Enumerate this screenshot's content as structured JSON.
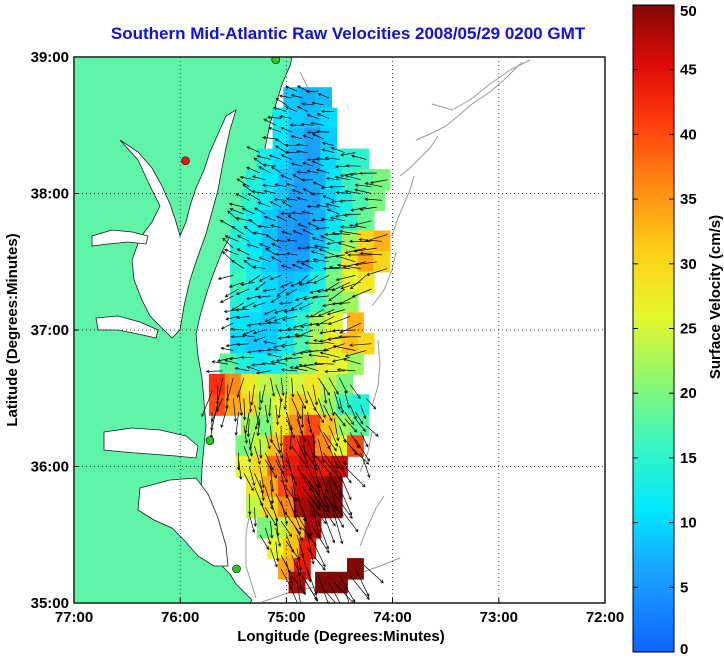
{
  "title": "Southern Mid-Atlantic Raw Velocities 2008/05/29 0200 GMT",
  "map": {
    "xlabel": "Longitude (Degrees:Minutes)",
    "ylabel": "Latitude (Degrees:Minutes)",
    "xlim": [
      -77,
      -72
    ],
    "ylim": [
      35,
      39
    ],
    "xticks": [
      {
        "value": -77,
        "label": "77:00"
      },
      {
        "value": -76,
        "label": "76:00"
      },
      {
        "value": -75,
        "label": "75:00"
      },
      {
        "value": -74,
        "label": "74:00"
      },
      {
        "value": -73,
        "label": "73:00"
      },
      {
        "value": -72,
        "label": "72:00"
      }
    ],
    "yticks": [
      {
        "value": 39,
        "label": "39:00"
      },
      {
        "value": 38,
        "label": "38:00"
      },
      {
        "value": 37,
        "label": "37:00"
      },
      {
        "value": 36,
        "label": "36:00"
      },
      {
        "value": 35,
        "label": "35:00"
      }
    ],
    "grid": "dotted",
    "land_color": "#5ef5a8",
    "bathymetry_color": "#9a9a9a"
  },
  "colorbar": {
    "label": "Surface Velocity (cm/s)",
    "min": 0,
    "max": 50,
    "ticks": [
      {
        "value": 0,
        "label": "0"
      },
      {
        "value": 5,
        "label": "5"
      },
      {
        "value": 10,
        "label": "10"
      },
      {
        "value": 15,
        "label": "15"
      },
      {
        "value": 20,
        "label": "20"
      },
      {
        "value": 25,
        "label": "25"
      },
      {
        "value": 30,
        "label": "30"
      },
      {
        "value": 35,
        "label": "35"
      },
      {
        "value": 40,
        "label": "40"
      },
      {
        "value": 45,
        "label": "45"
      },
      {
        "value": 50,
        "label": "50"
      }
    ]
  },
  "stations": [
    {
      "lon": -75.1,
      "lat": 38.98,
      "color": "#22cc22"
    },
    {
      "lon": -75.95,
      "lat": 38.24,
      "color": "#ee1111"
    },
    {
      "lon": -75.72,
      "lat": 36.19,
      "color": "#22cc22"
    },
    {
      "lon": -75.47,
      "lat": 35.25,
      "color": "#22cc22"
    }
  ],
  "chart_data": {
    "type": "heatmap",
    "description": "Gridded surface current field; cell values are speed in cm/s.",
    "value_units": "cm/s",
    "cells": [
      [
        -74.95,
        38.7,
        9
      ],
      [
        -74.8,
        38.7,
        7
      ],
      [
        -74.65,
        38.7,
        8
      ],
      [
        -75.05,
        38.55,
        12
      ],
      [
        -74.9,
        38.55,
        9
      ],
      [
        -74.75,
        38.55,
        8
      ],
      [
        -74.6,
        38.55,
        10
      ],
      [
        -75.05,
        38.4,
        11
      ],
      [
        -74.9,
        38.4,
        8
      ],
      [
        -74.75,
        38.4,
        6
      ],
      [
        -74.6,
        38.4,
        9
      ],
      [
        -75.2,
        38.25,
        13
      ],
      [
        -75.05,
        38.25,
        10
      ],
      [
        -74.9,
        38.25,
        7
      ],
      [
        -74.75,
        38.25,
        6
      ],
      [
        -74.6,
        38.25,
        10
      ],
      [
        -74.45,
        38.25,
        14
      ],
      [
        -74.3,
        38.25,
        15
      ],
      [
        -75.3,
        38.1,
        14
      ],
      [
        -75.15,
        38.1,
        11
      ],
      [
        -75.0,
        38.1,
        8
      ],
      [
        -74.85,
        38.1,
        6
      ],
      [
        -74.7,
        38.1,
        7
      ],
      [
        -74.55,
        38.1,
        11
      ],
      [
        -74.4,
        38.1,
        16
      ],
      [
        -74.25,
        38.1,
        18
      ],
      [
        -74.1,
        38.1,
        20
      ],
      [
        -75.35,
        37.95,
        15
      ],
      [
        -75.2,
        37.95,
        12
      ],
      [
        -75.05,
        37.95,
        9
      ],
      [
        -74.9,
        37.95,
        6
      ],
      [
        -74.75,
        37.95,
        6
      ],
      [
        -74.6,
        37.95,
        9
      ],
      [
        -74.45,
        37.95,
        13
      ],
      [
        -74.3,
        37.95,
        17
      ],
      [
        -74.15,
        37.95,
        20
      ],
      [
        -75.45,
        37.8,
        15
      ],
      [
        -75.3,
        37.8,
        12
      ],
      [
        -75.15,
        37.8,
        9
      ],
      [
        -75.0,
        37.8,
        6
      ],
      [
        -74.85,
        37.8,
        5
      ],
      [
        -74.7,
        37.8,
        7
      ],
      [
        -74.55,
        37.8,
        11
      ],
      [
        -74.4,
        37.8,
        15
      ],
      [
        -74.25,
        37.8,
        19
      ],
      [
        -75.45,
        37.65,
        14
      ],
      [
        -75.3,
        37.65,
        11
      ],
      [
        -75.15,
        37.65,
        8
      ],
      [
        -75.0,
        37.65,
        5
      ],
      [
        -74.85,
        37.65,
        4
      ],
      [
        -74.7,
        37.65,
        8
      ],
      [
        -74.55,
        37.65,
        14
      ],
      [
        -74.4,
        37.65,
        22
      ],
      [
        -74.25,
        37.65,
        30
      ],
      [
        -74.1,
        37.65,
        33
      ],
      [
        -75.45,
        37.5,
        15
      ],
      [
        -75.3,
        37.5,
        12
      ],
      [
        -75.15,
        37.5,
        9
      ],
      [
        -75.0,
        37.5,
        6
      ],
      [
        -74.85,
        37.5,
        6
      ],
      [
        -74.7,
        37.5,
        10
      ],
      [
        -74.55,
        37.5,
        18
      ],
      [
        -74.4,
        37.5,
        28
      ],
      [
        -74.25,
        37.5,
        34
      ],
      [
        -74.1,
        37.5,
        30
      ],
      [
        -75.45,
        37.35,
        16
      ],
      [
        -75.3,
        37.35,
        13
      ],
      [
        -75.15,
        37.35,
        10
      ],
      [
        -75.0,
        37.35,
        8
      ],
      [
        -74.85,
        37.35,
        9
      ],
      [
        -74.7,
        37.35,
        13
      ],
      [
        -74.55,
        37.35,
        20
      ],
      [
        -74.4,
        37.35,
        26
      ],
      [
        -74.25,
        37.35,
        28
      ],
      [
        -75.45,
        37.2,
        14
      ],
      [
        -75.3,
        37.2,
        12
      ],
      [
        -75.15,
        37.2,
        10
      ],
      [
        -75.0,
        37.2,
        9
      ],
      [
        -74.85,
        37.2,
        11
      ],
      [
        -74.7,
        37.2,
        16
      ],
      [
        -74.55,
        37.2,
        20
      ],
      [
        -74.4,
        37.2,
        22
      ],
      [
        -75.45,
        37.05,
        11
      ],
      [
        -75.3,
        37.05,
        10
      ],
      [
        -75.15,
        37.05,
        9
      ],
      [
        -75.0,
        37.05,
        11
      ],
      [
        -74.85,
        37.05,
        15
      ],
      [
        -74.7,
        37.05,
        22
      ],
      [
        -74.55,
        37.05,
        26
      ],
      [
        -74.35,
        37.05,
        33
      ],
      [
        -75.45,
        36.9,
        10
      ],
      [
        -75.3,
        36.9,
        9
      ],
      [
        -75.15,
        36.9,
        9
      ],
      [
        -75.0,
        36.9,
        12
      ],
      [
        -74.85,
        36.9,
        17
      ],
      [
        -74.7,
        36.9,
        23
      ],
      [
        -74.55,
        36.9,
        28
      ],
      [
        -74.4,
        36.9,
        32
      ],
      [
        -74.25,
        36.9,
        30
      ],
      [
        -75.55,
        36.75,
        18
      ],
      [
        -75.4,
        36.75,
        14
      ],
      [
        -75.25,
        36.75,
        12
      ],
      [
        -75.1,
        36.75,
        13
      ],
      [
        -74.95,
        36.75,
        17
      ],
      [
        -74.8,
        36.75,
        22
      ],
      [
        -74.65,
        36.75,
        27
      ],
      [
        -74.5,
        36.75,
        26
      ],
      [
        -74.35,
        36.75,
        22
      ],
      [
        -75.65,
        36.6,
        42
      ],
      [
        -75.5,
        36.6,
        36
      ],
      [
        -75.35,
        36.6,
        28
      ],
      [
        -75.2,
        36.6,
        24
      ],
      [
        -75.05,
        36.6,
        22
      ],
      [
        -74.9,
        36.6,
        25
      ],
      [
        -74.75,
        36.6,
        28
      ],
      [
        -74.6,
        36.6,
        24
      ],
      [
        -74.45,
        36.6,
        20
      ],
      [
        -75.65,
        36.45,
        40
      ],
      [
        -75.5,
        36.45,
        34
      ],
      [
        -75.35,
        36.45,
        30
      ],
      [
        -75.2,
        36.45,
        22
      ],
      [
        -75.05,
        36.45,
        26
      ],
      [
        -74.9,
        36.45,
        32
      ],
      [
        -74.75,
        36.45,
        28
      ],
      [
        -74.6,
        36.45,
        22
      ],
      [
        -74.45,
        36.45,
        16
      ],
      [
        -74.3,
        36.45,
        14
      ],
      [
        -75.35,
        36.3,
        22
      ],
      [
        -75.2,
        36.3,
        20
      ],
      [
        -75.05,
        36.3,
        28
      ],
      [
        -74.9,
        36.3,
        36
      ],
      [
        -74.75,
        36.3,
        40
      ],
      [
        -74.6,
        36.3,
        32
      ],
      [
        -74.45,
        36.3,
        22
      ],
      [
        -74.3,
        36.3,
        18
      ],
      [
        -75.4,
        36.15,
        20
      ],
      [
        -75.25,
        36.15,
        24
      ],
      [
        -75.1,
        36.15,
        32
      ],
      [
        -74.95,
        36.15,
        42
      ],
      [
        -74.8,
        36.15,
        46
      ],
      [
        -74.65,
        36.15,
        36
      ],
      [
        -74.5,
        36.15,
        26
      ],
      [
        -74.35,
        36.15,
        40
      ],
      [
        -75.4,
        36.0,
        26
      ],
      [
        -75.25,
        36.0,
        30
      ],
      [
        -75.1,
        36.0,
        38
      ],
      [
        -74.95,
        36.0,
        44
      ],
      [
        -74.8,
        36.0,
        46
      ],
      [
        -74.65,
        36.0,
        44
      ],
      [
        -74.5,
        36.0,
        46
      ],
      [
        -75.3,
        35.85,
        28
      ],
      [
        -75.15,
        35.85,
        34
      ],
      [
        -75.0,
        35.85,
        40
      ],
      [
        -74.85,
        35.85,
        46
      ],
      [
        -74.7,
        35.85,
        48
      ],
      [
        -74.55,
        35.85,
        50
      ],
      [
        -75.3,
        35.7,
        24
      ],
      [
        -75.15,
        35.7,
        30
      ],
      [
        -75.0,
        35.7,
        36
      ],
      [
        -74.85,
        35.7,
        48
      ],
      [
        -74.7,
        35.7,
        50
      ],
      [
        -74.55,
        35.7,
        50
      ],
      [
        -75.2,
        35.55,
        20
      ],
      [
        -75.05,
        35.55,
        24
      ],
      [
        -74.9,
        35.55,
        32
      ],
      [
        -74.75,
        35.55,
        48
      ],
      [
        -75.1,
        35.4,
        26
      ],
      [
        -74.95,
        35.4,
        32
      ],
      [
        -74.8,
        35.4,
        44
      ],
      [
        -75.0,
        35.25,
        34
      ],
      [
        -74.85,
        35.25,
        44
      ],
      [
        -74.9,
        35.15,
        48
      ],
      [
        -74.5,
        35.15,
        50
      ],
      [
        -74.65,
        35.15,
        50
      ],
      [
        -74.35,
        35.25,
        50
      ]
    ],
    "vectors_note": "Arrows show current direction at each radar vector point."
  }
}
